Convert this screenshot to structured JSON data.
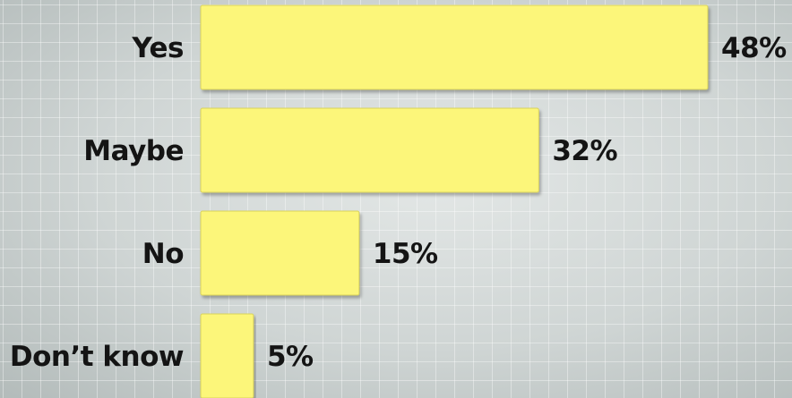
{
  "chart_data": {
    "type": "bar",
    "orientation": "horizontal",
    "categories": [
      "Yes",
      "Maybe",
      "No",
      "Don’t know"
    ],
    "values": [
      48,
      32,
      15,
      5
    ],
    "value_labels": [
      "48%",
      "32%",
      "15%",
      "5%"
    ],
    "xlim": [
      0,
      48
    ],
    "grid": true,
    "colors": {
      "bar": "#fcf67a",
      "bar_edge": "#d9d35a",
      "text": "#141414"
    }
  }
}
